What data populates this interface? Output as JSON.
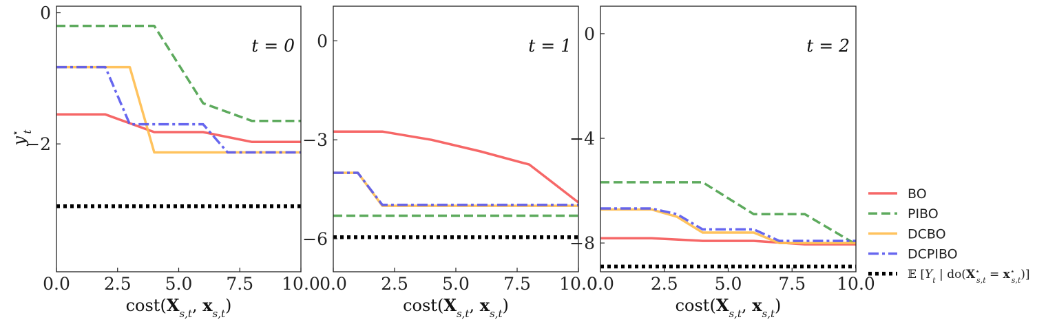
{
  "chart_data": [
    {
      "type": "line",
      "annotation": "t = 0",
      "xlabel": "cost(X_{s,t}, x_{s,t})",
      "ylabel": "y_t^*",
      "xlim": [
        0,
        10
      ],
      "ylim": [
        -3.95,
        0.1
      ],
      "x_ticks": [
        0,
        2.5,
        5,
        7.5,
        10
      ],
      "x_tick_labels": [
        "0.0",
        "2.5",
        "5.0",
        "7.5",
        "10.0"
      ],
      "y_ticks": [
        0,
        -2
      ],
      "y_tick_labels": [
        "0",
        "−2"
      ],
      "series": [
        {
          "name": "BO",
          "color": "#f55a5a",
          "dash": "solid",
          "x": [
            0,
            2,
            4,
            6,
            8,
            10
          ],
          "y": [
            -1.55,
            -1.55,
            -1.82,
            -1.82,
            -1.97,
            -1.97
          ]
        },
        {
          "name": "PIBO",
          "color": "#4fa34f",
          "dash": "dashed",
          "x": [
            0,
            4,
            6,
            8,
            10
          ],
          "y": [
            -0.2,
            -0.2,
            -1.38,
            -1.65,
            -1.65
          ]
        },
        {
          "name": "DCBO",
          "color": "#ffbe50",
          "dash": "solid",
          "x": [
            0,
            3,
            4,
            10
          ],
          "y": [
            -0.83,
            -0.83,
            -2.13,
            -2.13
          ]
        },
        {
          "name": "DCPIBO",
          "color": "#5a5aee",
          "dash": "dashdot",
          "x": [
            0,
            2,
            3,
            6,
            7,
            10
          ],
          "y": [
            -0.83,
            -0.83,
            -1.7,
            -1.7,
            -2.13,
            -2.13
          ]
        },
        {
          "name": "E[Y_t | do(X*_{s,t} = x*_{s,t})]",
          "color": "#000000",
          "dash": "dotted",
          "x": [
            0,
            10
          ],
          "y": [
            -2.95,
            -2.95
          ]
        }
      ]
    },
    {
      "type": "line",
      "annotation": "t = 1",
      "xlabel": "cost(X_{s,t}, x_{s,t})",
      "ylabel": "",
      "xlim": [
        0,
        10
      ],
      "ylim": [
        -7.0,
        1.05
      ],
      "x_ticks": [
        0,
        2.5,
        5,
        7.5,
        10
      ],
      "x_tick_labels": [
        "0.0",
        "2.5",
        "5.0",
        "7.5",
        "10.0"
      ],
      "y_ticks": [
        0,
        -3,
        -6
      ],
      "y_tick_labels": [
        "0",
        "−3",
        "−6"
      ],
      "series": [
        {
          "name": "BO",
          "color": "#f55a5a",
          "dash": "solid",
          "x": [
            0,
            2,
            4,
            6,
            8,
            10
          ],
          "y": [
            -2.75,
            -2.75,
            -3.0,
            -3.35,
            -3.75,
            -4.9
          ]
        },
        {
          "name": "PIBO",
          "color": "#4fa34f",
          "dash": "dashed",
          "x": [
            0,
            10
          ],
          "y": [
            -5.3,
            -5.3
          ]
        },
        {
          "name": "DCBO",
          "color": "#ffbe50",
          "dash": "solid",
          "x": [
            0,
            1,
            2,
            10
          ],
          "y": [
            -4.0,
            -4.0,
            -5.0,
            -5.0
          ]
        },
        {
          "name": "DCPIBO",
          "color": "#5a5aee",
          "dash": "dashdot",
          "x": [
            0,
            1,
            2,
            10
          ],
          "y": [
            -4.0,
            -4.0,
            -4.97,
            -4.97
          ]
        },
        {
          "name": "E[Y_t | do(X*_{s,t} = x*_{s,t})]",
          "color": "#000000",
          "dash": "dotted",
          "x": [
            0,
            10
          ],
          "y": [
            -5.95,
            -5.95
          ]
        }
      ]
    },
    {
      "type": "line",
      "annotation": "t = 2",
      "xlabel": "cost(X_{s,t}, x_{s,t})",
      "ylabel": "",
      "xlim": [
        0,
        10
      ],
      "ylim": [
        -9.1,
        1.05
      ],
      "x_ticks": [
        0,
        2.5,
        5,
        7.5,
        10
      ],
      "x_tick_labels": [
        "0.0",
        "2.5",
        "5.0",
        "7.5",
        "10.0"
      ],
      "y_ticks": [
        0,
        -4,
        -8
      ],
      "y_tick_labels": [
        "0",
        "−4",
        "−8"
      ],
      "series": [
        {
          "name": "BO",
          "color": "#f55a5a",
          "dash": "solid",
          "x": [
            0,
            2,
            4,
            6,
            8,
            10
          ],
          "y": [
            -7.82,
            -7.82,
            -7.92,
            -7.92,
            -8.05,
            -8.05
          ]
        },
        {
          "name": "PIBO",
          "color": "#4fa34f",
          "dash": "dashed",
          "x": [
            0,
            4,
            6,
            8,
            10
          ],
          "y": [
            -5.68,
            -5.68,
            -6.9,
            -6.9,
            -8.05
          ]
        },
        {
          "name": "DCBO",
          "color": "#ffbe50",
          "dash": "solid",
          "x": [
            0,
            2,
            3,
            4,
            6,
            7,
            10
          ],
          "y": [
            -6.72,
            -6.72,
            -7.0,
            -7.6,
            -7.6,
            -8.0,
            -8.0
          ]
        },
        {
          "name": "DCPIBO",
          "color": "#5a5aee",
          "dash": "dashdot",
          "x": [
            0,
            2,
            3,
            4,
            6,
            7,
            10
          ],
          "y": [
            -6.68,
            -6.68,
            -6.9,
            -7.48,
            -7.48,
            -7.92,
            -7.92
          ]
        },
        {
          "name": "E[Y_t | do(X*_{s,t} = x*_{s,t})]",
          "color": "#000000",
          "dash": "dotted",
          "x": [
            0,
            10
          ],
          "y": [
            -8.9,
            -8.9
          ]
        }
      ]
    }
  ],
  "legend": {
    "placement": "right",
    "entries": [
      {
        "label": "BO",
        "color": "#f55a5a",
        "dash": "solid"
      },
      {
        "label": "PIBO",
        "color": "#4fa34f",
        "dash": "dashed"
      },
      {
        "label": "DCBO",
        "color": "#ffbe50",
        "dash": "solid"
      },
      {
        "label": "DCPIBO",
        "color": "#5a5aee",
        "dash": "dashdot"
      },
      {
        "label": "𝔼 [Y_t | do(X⋆_{s,t} = x⋆_{s,t})]",
        "color": "#000000",
        "dash": "dotted"
      }
    ]
  }
}
